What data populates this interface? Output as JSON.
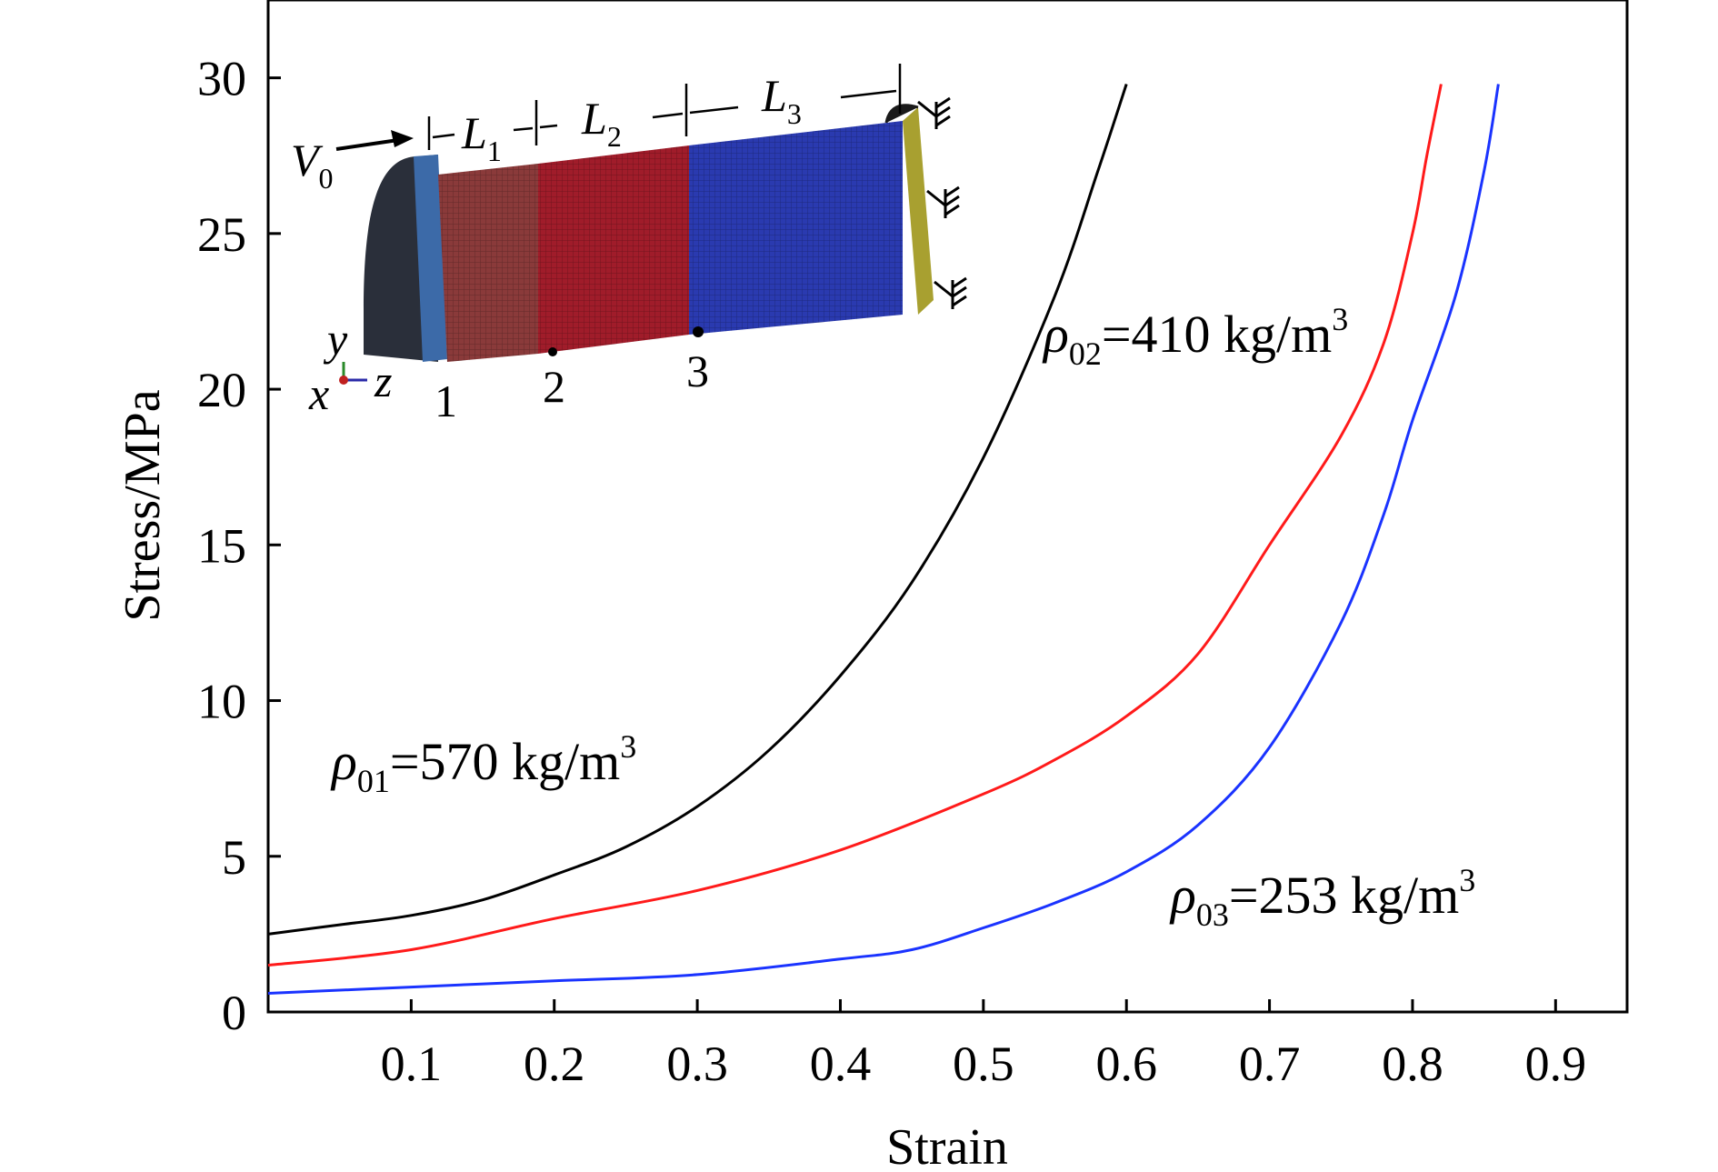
{
  "chart_data": {
    "type": "line",
    "title": "",
    "xlabel": "Strain",
    "ylabel": "Stress/MPa",
    "xlim": [
      0,
      0.95
    ],
    "ylim": [
      0,
      32.5
    ],
    "x_ticks": [
      0.1,
      0.2,
      0.3,
      0.4,
      0.5,
      0.6,
      0.7,
      0.8,
      0.9
    ],
    "x_tick_labels": [
      "0.1",
      "0.2",
      "0.3",
      "0.4",
      "0.5",
      "0.6",
      "0.7",
      "0.8",
      "0.9"
    ],
    "y_ticks": [
      0,
      5,
      10,
      15,
      20,
      25,
      30
    ],
    "y_tick_labels": [
      "0",
      "5",
      "10",
      "15",
      "20",
      "25",
      "30"
    ],
    "grid": false,
    "series": [
      {
        "color": "#000000",
        "x": [
          0.0,
          0.05,
          0.1,
          0.15,
          0.2,
          0.25,
          0.3,
          0.35,
          0.4,
          0.45,
          0.5,
          0.55,
          0.58,
          0.6
        ],
        "y": [
          2.5,
          2.8,
          3.1,
          3.6,
          4.4,
          5.3,
          6.6,
          8.4,
          10.8,
          13.8,
          17.8,
          23.0,
          27.0,
          29.8
        ]
      },
      {
        "color": "#ff1a1a",
        "x": [
          0.0,
          0.1,
          0.2,
          0.3,
          0.4,
          0.5,
          0.55,
          0.6,
          0.65,
          0.7,
          0.75,
          0.78,
          0.8,
          0.81,
          0.82
        ],
        "y": [
          1.5,
          2.0,
          3.0,
          3.9,
          5.2,
          7.0,
          8.1,
          9.5,
          11.5,
          15.0,
          18.5,
          21.5,
          25.0,
          27.5,
          29.8
        ]
      },
      {
        "color": "#1a33ff",
        "x": [
          0.0,
          0.1,
          0.2,
          0.3,
          0.4,
          0.45,
          0.5,
          0.55,
          0.6,
          0.65,
          0.7,
          0.75,
          0.78,
          0.8,
          0.83,
          0.85,
          0.86
        ],
        "y": [
          0.6,
          0.8,
          1.0,
          1.2,
          1.7,
          2.0,
          2.7,
          3.5,
          4.5,
          6.0,
          8.5,
          12.5,
          16.0,
          19.0,
          23.0,
          27.0,
          29.8
        ]
      }
    ],
    "annotations": [
      {
        "symbol": "ρ",
        "sub": "01",
        "value": "=570 kg/m",
        "sup": "3"
      },
      {
        "symbol": "ρ",
        "sub": "02",
        "value": "=410 kg/m",
        "sup": "3"
      },
      {
        "symbol": "ρ",
        "sub": "03",
        "value": "=253 kg/m",
        "sup": "3"
      }
    ],
    "inset": {
      "labels": {
        "v0": "V",
        "v0_sub": "0",
        "l1": "L",
        "l1_sub": "1",
        "l2": "L",
        "l2_sub": "2",
        "l3": "L",
        "l3_sub": "3",
        "point1": "1",
        "point2": "2",
        "point3": "3",
        "axis_x": "x",
        "axis_y": "y",
        "axis_z": "z"
      },
      "colors": {
        "impact_block": "#2a2f3a",
        "face_front": "#3c6aa8",
        "segment1": "#8a3a3a",
        "segment2": "#a01c2a",
        "segment3": "#2a3ab0",
        "support_plate": "#a8a030"
      }
    }
  }
}
